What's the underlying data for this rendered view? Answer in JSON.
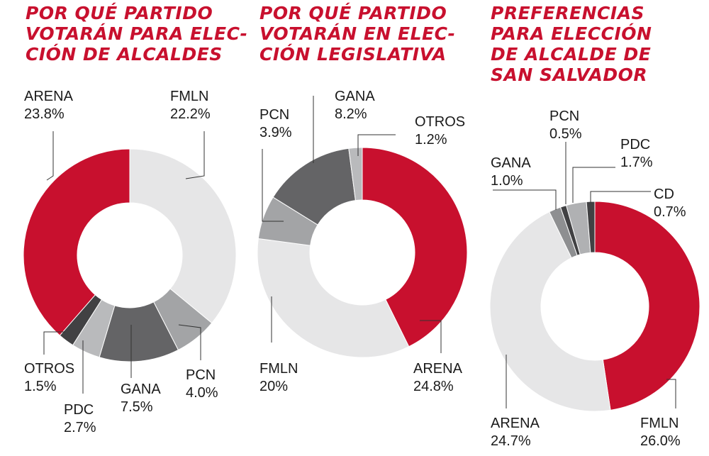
{
  "colors": {
    "red": "#c8102e",
    "light": "#e6e6e7",
    "mid": "#b0b1b3",
    "midlight": "#a3a4a6",
    "dark": "#646466",
    "darker": "#414143"
  },
  "chart_data": [
    {
      "type": "pie",
      "title": "POR QUÉ PARTIDO\nVOTARÁN PARA ELEC-\nCIÓN DE ALCALDES",
      "slices": [
        {
          "label": "FMLN",
          "value": 22.2,
          "value_label": "22.2%",
          "color": "#e6e6e7"
        },
        {
          "label": "PCN",
          "value": 4.0,
          "value_label": "4.0%",
          "color": "#a3a4a6"
        },
        {
          "label": "GANA",
          "value": 7.5,
          "value_label": "7.5%",
          "color": "#646466"
        },
        {
          "label": "PDC",
          "value": 2.7,
          "value_label": "2.7%",
          "color": "#b9babc"
        },
        {
          "label": "OTROS",
          "value": 1.5,
          "value_label": "1.5%",
          "color": "#414143"
        },
        {
          "label": "ARENA",
          "value": 23.8,
          "value_label": "23.8%",
          "color": "#c8102e"
        }
      ]
    },
    {
      "type": "pie",
      "title": "POR QUÉ PARTIDO\nVOTARÁN EN ELEC-\nCIÓN LEGISLATIVA",
      "slices": [
        {
          "label": "ARENA",
          "value": 24.8,
          "value_label": "24.8%",
          "color": "#c8102e"
        },
        {
          "label": "FMLN",
          "value": 20,
          "value_label": "20%",
          "color": "#e6e6e7"
        },
        {
          "label": "PCN",
          "value": 3.9,
          "value_label": "3.9%",
          "color": "#a3a4a6"
        },
        {
          "label": "GANA",
          "value": 8.2,
          "value_label": "8.2%",
          "color": "#646466"
        },
        {
          "label": "OTROS",
          "value": 1.2,
          "value_label": "1.2%",
          "color": "#b9babc"
        }
      ]
    },
    {
      "type": "pie",
      "title": "PREFERENCIAS\nPARA ELECCIÓN\nDE ALCALDE DE\nSAN SALVADOR",
      "slices": [
        {
          "label": "FMLN",
          "value": 26.0,
          "value_label": "26.0%",
          "color": "#c8102e"
        },
        {
          "label": "ARENA",
          "value": 24.7,
          "value_label": "24.7%",
          "color": "#e6e6e7"
        },
        {
          "label": "GANA",
          "value": 1.0,
          "value_label": "1.0%",
          "color": "#8e8f91"
        },
        {
          "label": "PCN",
          "value": 0.5,
          "value_label": "0.5%",
          "color": "#414143"
        },
        {
          "label": "PDC",
          "value": 1.7,
          "value_label": "1.7%",
          "color": "#b0b1b3"
        },
        {
          "label": "CD",
          "value": 0.7,
          "value_label": "0.7%",
          "color": "#414143"
        }
      ]
    }
  ]
}
